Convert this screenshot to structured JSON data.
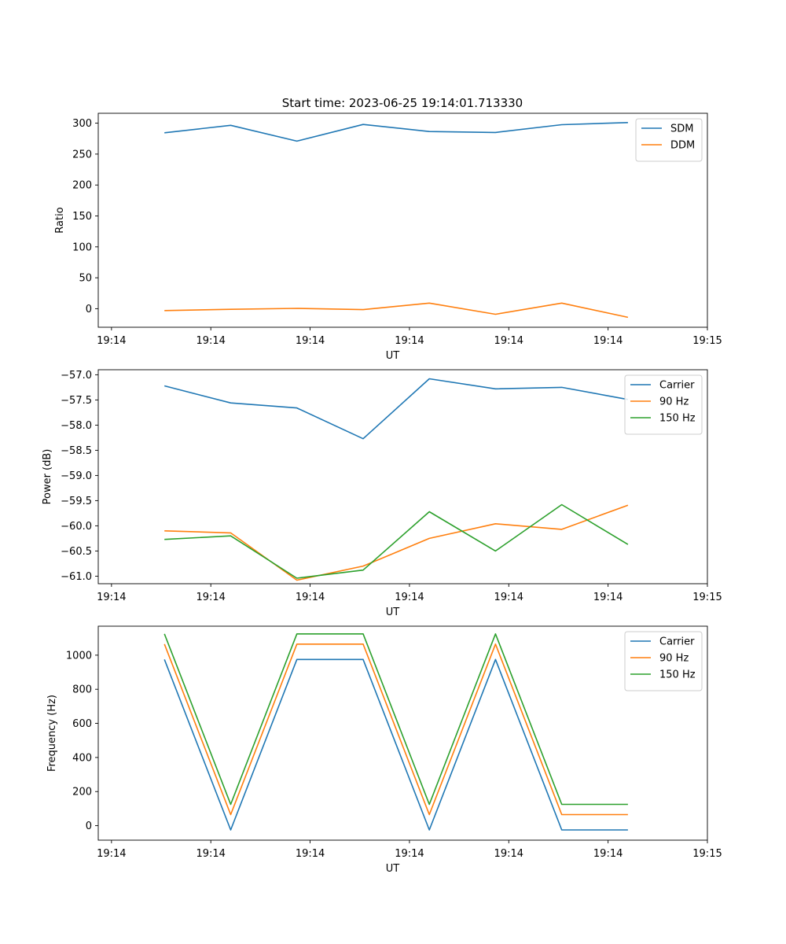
{
  "figure_title": "Start time: 2023-06-25 19:14:01.713330",
  "colors": {
    "blue": "#1f77b4",
    "orange": "#ff7f0e",
    "green": "#2ca02c"
  },
  "chart_data": [
    {
      "type": "line",
      "title": "Start time: 2023-06-25 19:14:01.713330",
      "xlabel": "UT",
      "ylabel": "Ratio",
      "x": [
        1,
        2,
        3,
        4,
        5,
        6,
        7,
        8
      ],
      "xlim": [
        0,
        9.2
      ],
      "x_ticks": [
        0.2,
        1.7,
        3.2,
        4.7,
        6.2,
        7.7,
        9.2
      ],
      "x_tick_labels": [
        "19:14",
        "19:14",
        "19:14",
        "19:14",
        "19:14",
        "19:14",
        "19:15"
      ],
      "ylim": [
        -30,
        316
      ],
      "y_ticks": [
        0,
        50,
        100,
        150,
        200,
        250,
        300
      ],
      "y_tick_labels": [
        "0",
        "50",
        "100",
        "150",
        "200",
        "250",
        "300"
      ],
      "legend": "top-right",
      "grid": false,
      "series": [
        {
          "name": "SDM",
          "color": "#1f77b4",
          "values": [
            284.5,
            296.5,
            271,
            298,
            286.5,
            285,
            297.5,
            301
          ]
        },
        {
          "name": "DDM",
          "color": "#ff7f0e",
          "values": [
            -3,
            -1,
            0.5,
            -1.5,
            9,
            -9,
            9,
            -14
          ]
        }
      ]
    },
    {
      "type": "line",
      "xlabel": "UT",
      "ylabel": "Power (dB)",
      "x": [
        1,
        2,
        3,
        4,
        5,
        6,
        7,
        8
      ],
      "xlim": [
        0,
        9.2
      ],
      "x_ticks": [
        0.2,
        1.7,
        3.2,
        4.7,
        6.2,
        7.7,
        9.2
      ],
      "x_tick_labels": [
        "19:14",
        "19:14",
        "19:14",
        "19:14",
        "19:14",
        "19:14",
        "19:15"
      ],
      "ylim": [
        -61.15,
        -56.9
      ],
      "y_ticks": [
        -57.0,
        -57.5,
        -58.0,
        -58.5,
        -59.0,
        -59.5,
        -60.0,
        -60.5,
        -61.0
      ],
      "y_tick_labels": [
        "−57.0",
        "−57.5",
        "−58.0",
        "−58.5",
        "−59.0",
        "−59.5",
        "−60.0",
        "−60.5",
        "−61.0"
      ],
      "legend": "top-right",
      "grid": false,
      "series": [
        {
          "name": "Carrier",
          "color": "#1f77b4",
          "values": [
            -57.22,
            -57.56,
            -57.66,
            -58.27,
            -57.08,
            -57.28,
            -57.25,
            -57.49
          ]
        },
        {
          "name": "90 Hz",
          "color": "#ff7f0e",
          "values": [
            -60.1,
            -60.14,
            -61.08,
            -60.8,
            -60.25,
            -59.96,
            -60.07,
            -59.59
          ]
        },
        {
          "name": "150 Hz",
          "color": "#2ca02c",
          "values": [
            -60.27,
            -60.2,
            -61.04,
            -60.88,
            -59.72,
            -60.5,
            -59.58,
            -60.37
          ]
        }
      ]
    },
    {
      "type": "line",
      "xlabel": "UT",
      "ylabel": "Frequency (Hz)",
      "x": [
        1,
        2,
        3,
        4,
        5,
        6,
        7,
        8
      ],
      "xlim": [
        0,
        9.2
      ],
      "x_ticks": [
        0.2,
        1.7,
        3.2,
        4.7,
        6.2,
        7.7,
        9.2
      ],
      "x_tick_labels": [
        "19:14",
        "19:14",
        "19:14",
        "19:14",
        "19:14",
        "19:14",
        "19:15"
      ],
      "ylim": [
        -85,
        1170
      ],
      "y_ticks": [
        0,
        200,
        400,
        600,
        800,
        1000
      ],
      "y_tick_labels": [
        "0",
        "200",
        "400",
        "600",
        "800",
        "1000"
      ],
      "legend": "top-right",
      "grid": false,
      "series": [
        {
          "name": "Carrier",
          "color": "#1f77b4",
          "values": [
            975,
            -25,
            975,
            975,
            -25,
            975,
            -25,
            -25
          ]
        },
        {
          "name": "90 Hz",
          "color": "#ff7f0e",
          "values": [
            1065,
            65,
            1065,
            1065,
            65,
            1065,
            65,
            65
          ]
        },
        {
          "name": "150 Hz",
          "color": "#2ca02c",
          "values": [
            1125,
            125,
            1125,
            1125,
            125,
            1125,
            125,
            125
          ]
        }
      ]
    }
  ]
}
